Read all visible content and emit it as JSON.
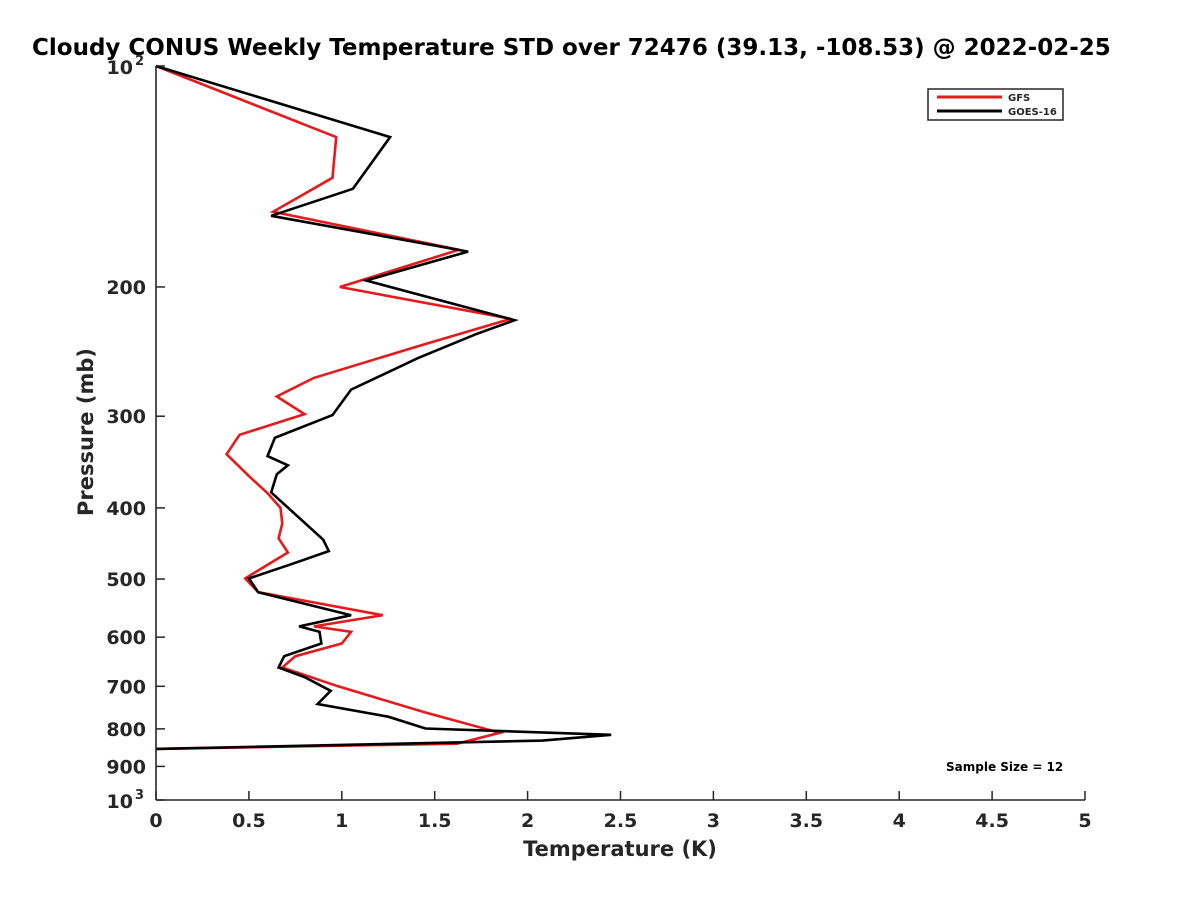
{
  "chart_data": {
    "type": "line",
    "title": "Cloudy CONUS Weekly Temperature STD over 72476 (39.13, -108.53) @ 2022-02-25",
    "xlabel": "Temperature (K)",
    "ylabel": "Pressure (mb)",
    "xlim": [
      0,
      5
    ],
    "ylim": [
      100,
      1000
    ],
    "y_scale": "log",
    "y_reversed": true,
    "grid": false,
    "legend_position": "top-right",
    "annotation": "Sample Size = 12",
    "xticks": [
      {
        "v": 0,
        "label": "0"
      },
      {
        "v": 0.5,
        "label": "0.5"
      },
      {
        "v": 1,
        "label": "1"
      },
      {
        "v": 1.5,
        "label": "1.5"
      },
      {
        "v": 2,
        "label": "2"
      },
      {
        "v": 2.5,
        "label": "2.5"
      },
      {
        "v": 3,
        "label": "3"
      },
      {
        "v": 3.5,
        "label": "3.5"
      },
      {
        "v": 4,
        "label": "4"
      },
      {
        "v": 4.5,
        "label": "4.5"
      },
      {
        "v": 5,
        "label": "5"
      }
    ],
    "yticks": [
      {
        "v": 100,
        "base": "10",
        "exp": "2"
      },
      {
        "v": 200,
        "label": "200"
      },
      {
        "v": 300,
        "label": "300"
      },
      {
        "v": 400,
        "label": "400"
      },
      {
        "v": 500,
        "label": "500"
      },
      {
        "v": 600,
        "label": "600"
      },
      {
        "v": 700,
        "label": "700"
      },
      {
        "v": 800,
        "label": "800"
      },
      {
        "v": 900,
        "label": "900"
      },
      {
        "v": 1000,
        "base": "10",
        "exp": "3"
      }
    ],
    "series": [
      {
        "name": "GFS",
        "color": "#e41a1c",
        "points": [
          [
            0,
            100
          ],
          [
            0.97,
            125
          ],
          [
            0.95,
            142
          ],
          [
            0.63,
            158
          ],
          [
            1.63,
            178
          ],
          [
            0.99,
            200
          ],
          [
            1.91,
            221
          ],
          [
            1.43,
            240
          ],
          [
            0.85,
            266
          ],
          [
            0.65,
            282
          ],
          [
            0.8,
            298
          ],
          [
            0.45,
            318
          ],
          [
            0.38,
            338
          ],
          [
            0.5,
            362
          ],
          [
            0.6,
            382
          ],
          [
            0.67,
            400
          ],
          [
            0.68,
            420
          ],
          [
            0.66,
            440
          ],
          [
            0.71,
            460
          ],
          [
            0.48,
            499
          ],
          [
            0.55,
            521
          ],
          [
            1.22,
            560
          ],
          [
            0.85,
            580
          ],
          [
            1.05,
            590
          ],
          [
            1.0,
            612
          ],
          [
            0.75,
            637
          ],
          [
            0.68,
            660
          ],
          [
            0.98,
            700
          ],
          [
            1.45,
            760
          ],
          [
            1.85,
            810
          ],
          [
            1.62,
            838
          ],
          [
            0,
            852
          ]
        ]
      },
      {
        "name": "GOES-16",
        "color": "#000000",
        "points": [
          [
            0,
            100
          ],
          [
            1.26,
            125
          ],
          [
            1.06,
            147
          ],
          [
            0.62,
            160
          ],
          [
            1.68,
            179
          ],
          [
            1.13,
            196
          ],
          [
            1.93,
            222
          ],
          [
            1.72,
            232
          ],
          [
            1.41,
            250
          ],
          [
            1.05,
            276
          ],
          [
            0.95,
            299
          ],
          [
            0.64,
            321
          ],
          [
            0.6,
            340
          ],
          [
            0.71,
            350
          ],
          [
            0.65,
            360
          ],
          [
            0.62,
            381
          ],
          [
            0.9,
            442
          ],
          [
            0.93,
            458
          ],
          [
            0.72,
            478
          ],
          [
            0.5,
            499
          ],
          [
            0.55,
            521
          ],
          [
            1.05,
            560
          ],
          [
            0.77,
            580
          ],
          [
            0.88,
            590
          ],
          [
            0.89,
            612
          ],
          [
            0.69,
            637
          ],
          [
            0.66,
            660
          ],
          [
            0.8,
            680
          ],
          [
            0.94,
            710
          ],
          [
            0.87,
            740
          ],
          [
            1.25,
            770
          ],
          [
            1.45,
            799
          ],
          [
            2.45,
            815
          ],
          [
            2.08,
            830
          ],
          [
            0,
            852
          ]
        ]
      }
    ]
  }
}
